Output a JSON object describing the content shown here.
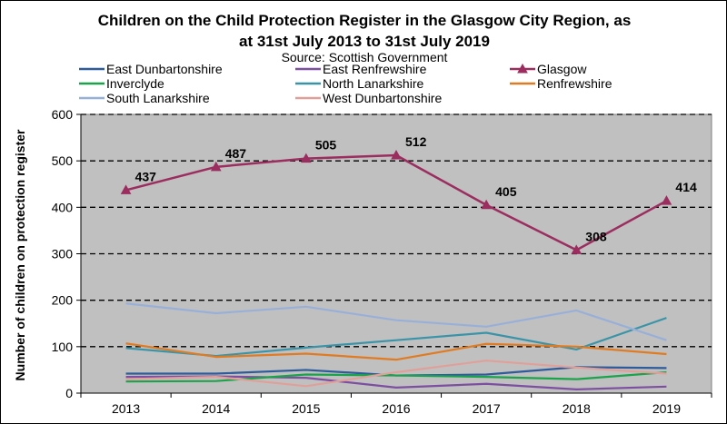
{
  "chart_data": {
    "type": "line",
    "title_line1": "Children on the Child Protection Register in the Glasgow City Region, as",
    "title_line2": "at 31st July 2013 to 31st July 2019",
    "subtitle": "Source: Scottish Government",
    "xlabel": "",
    "ylabel": "Number of children on protection register",
    "ylim": [
      0,
      600
    ],
    "yticks": [
      "0",
      "100",
      "200",
      "300",
      "400",
      "500",
      "600"
    ],
    "categories": [
      "2013",
      "2014",
      "2015",
      "2016",
      "2017",
      "2018",
      "2019"
    ],
    "grid": "horizontal dashed",
    "legend_position": "top",
    "series": [
      {
        "name": "East Dunbartonshire",
        "color": "#2e5b9a",
        "marker": "none",
        "values": [
          42,
          42,
          50,
          38,
          40,
          56,
          54
        ]
      },
      {
        "name": "East Renfrewshire",
        "color": "#7d4fa0",
        "marker": "none",
        "values": [
          35,
          36,
          33,
          12,
          20,
          8,
          14
        ]
      },
      {
        "name": "Glasgow",
        "color": "#9b2d5f",
        "marker": "triangle",
        "values": [
          437,
          487,
          505,
          512,
          405,
          308,
          414
        ],
        "labels": [
          "437",
          "487",
          "505",
          "512",
          "405",
          "308",
          "414"
        ]
      },
      {
        "name": "Inverclyde",
        "color": "#1aa34a",
        "marker": "none",
        "values": [
          25,
          26,
          40,
          38,
          35,
          30,
          45
        ]
      },
      {
        "name": "North Lanarkshire",
        "color": "#3a94a8",
        "marker": "none",
        "values": [
          97,
          80,
          98,
          114,
          130,
          94,
          162
        ]
      },
      {
        "name": "Renfrewshire",
        "color": "#e07b22",
        "marker": "none",
        "values": [
          107,
          78,
          85,
          72,
          106,
          100,
          84
        ]
      },
      {
        "name": "South Lanarkshire",
        "color": "#98b0d8",
        "marker": "none",
        "values": [
          193,
          172,
          186,
          157,
          143,
          178,
          114
        ]
      },
      {
        "name": "West Dunbartonshire",
        "color": "#e0a09a",
        "marker": "none",
        "values": [
          30,
          35,
          15,
          45,
          70,
          55,
          42
        ]
      }
    ]
  }
}
